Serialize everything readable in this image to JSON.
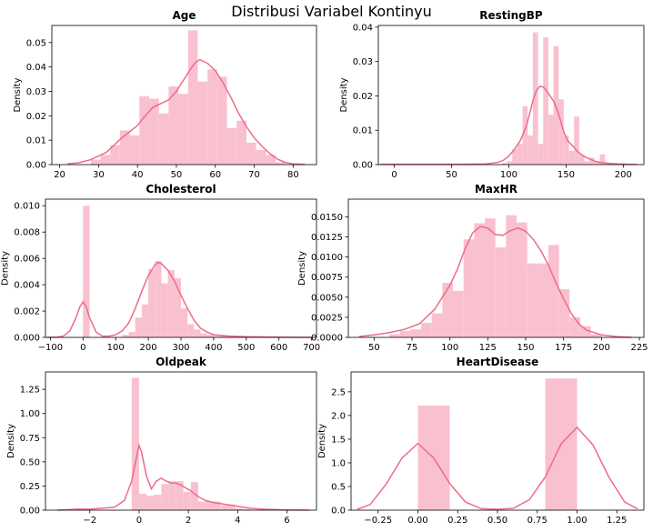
{
  "suptitle": "Distribusi Variabel Kontinyu",
  "colors": {
    "bar": "#f9c1cf",
    "line": "#ee6b8a",
    "axis": "#000000"
  },
  "ylabel": "Density",
  "chart_data": [
    {
      "type": "bar",
      "title": "Age",
      "xlim": [
        18,
        86
      ],
      "ylim": [
        0,
        0.057
      ],
      "xticks": [
        20,
        30,
        40,
        50,
        60,
        70,
        80
      ],
      "xtick_labels": [
        "20",
        "30",
        "40",
        "50",
        "60",
        "70",
        "80"
      ],
      "yticks": [
        0,
        0.01,
        0.02,
        0.03,
        0.04,
        0.05
      ],
      "ytick_labels": [
        "0.00",
        "0.01",
        "0.02",
        "0.03",
        "0.04",
        "0.05"
      ],
      "bin_edges": [
        28,
        30.5,
        33,
        35.5,
        38,
        40.5,
        43,
        45.5,
        48,
        50.5,
        53,
        55.5,
        58,
        60.5,
        63,
        65.5,
        68,
        70.5,
        73,
        75.5,
        78
      ],
      "bars": [
        0.002,
        0.004,
        0.008,
        0.014,
        0.012,
        0.028,
        0.027,
        0.021,
        0.032,
        0.029,
        0.055,
        0.034,
        0.039,
        0.036,
        0.015,
        0.018,
        0.009,
        0.006,
        0.004,
        0.001
      ],
      "kde_x": [
        22,
        25,
        28,
        30,
        32,
        34,
        36,
        38,
        40,
        42,
        44,
        46,
        48,
        50,
        52,
        54,
        55,
        56,
        58,
        60,
        62,
        64,
        66,
        68,
        70,
        72,
        74,
        76,
        78,
        80,
        83
      ],
      "kde_y": [
        0.0003,
        0.0008,
        0.002,
        0.0035,
        0.005,
        0.008,
        0.011,
        0.0135,
        0.016,
        0.02,
        0.0235,
        0.025,
        0.0265,
        0.03,
        0.035,
        0.04,
        0.042,
        0.043,
        0.0415,
        0.0385,
        0.0335,
        0.0275,
        0.021,
        0.0155,
        0.011,
        0.0075,
        0.0045,
        0.0022,
        0.0009,
        0.0003,
        0.0001
      ]
    },
    {
      "type": "bar",
      "title": "RestingBP",
      "xlim": [
        -14,
        218
      ],
      "ylim": [
        0,
        0.0405
      ],
      "xticks": [
        0,
        50,
        100,
        150,
        200
      ],
      "xtick_labels": [
        "0",
        "50",
        "100",
        "150",
        "200"
      ],
      "yticks": [
        0,
        0.01,
        0.02,
        0.03,
        0.04
      ],
      "ytick_labels": [
        "0.00",
        "0.01",
        "0.02",
        "0.03",
        "0.04"
      ],
      "bin_edges": [
        0,
        4.5,
        94,
        98.5,
        103,
        107.5,
        112,
        116.5,
        121,
        125.5,
        130,
        134.5,
        139,
        143.5,
        148,
        152.5,
        157,
        161.5,
        166,
        170.5,
        175,
        179.5,
        184,
        188.5,
        193,
        197.5,
        202
      ],
      "bars": [
        0.0002,
        0,
        0.0005,
        0.001,
        0.0045,
        0.006,
        0.017,
        0.0085,
        0.0385,
        0.006,
        0.037,
        0.0145,
        0.0345,
        0.019,
        0.0085,
        0.004,
        0.014,
        0.003,
        0.001,
        0.002,
        0.001,
        0.003,
        0.0005,
        0.0005,
        0,
        0.0005
      ],
      "kde_x": [
        -12,
        20,
        60,
        80,
        90,
        95,
        100,
        105,
        110,
        115,
        118,
        121,
        124,
        127,
        130,
        133,
        136,
        139,
        142,
        145,
        148,
        151,
        154,
        157,
        160,
        165,
        170,
        175,
        180,
        190,
        200,
        212
      ],
      "kde_y": [
        0.0001,
        0.0001,
        0.0001,
        0.0002,
        0.0006,
        0.0012,
        0.0025,
        0.0045,
        0.007,
        0.011,
        0.0145,
        0.0185,
        0.0215,
        0.0228,
        0.0226,
        0.0215,
        0.02,
        0.0185,
        0.0162,
        0.013,
        0.0095,
        0.0072,
        0.006,
        0.005,
        0.0038,
        0.0025,
        0.0017,
        0.001,
        0.0006,
        0.0003,
        0.0001,
        0.0001
      ]
    },
    {
      "type": "bar",
      "title": "Cholesterol",
      "xlim": [
        -115,
        715
      ],
      "ylim": [
        0,
        0.0105
      ],
      "xticks": [
        -100,
        0,
        100,
        200,
        300,
        400,
        500,
        600,
        700
      ],
      "xtick_labels": [
        "−100",
        "0",
        "100",
        "200",
        "300",
        "400",
        "500",
        "600",
        "700"
      ],
      "yticks": [
        0,
        0.002,
        0.004,
        0.006,
        0.008,
        0.01
      ],
      "ytick_labels": [
        "0.000",
        "0.002",
        "0.004",
        "0.006",
        "0.008",
        "0.010"
      ],
      "bin_edges": [
        0,
        20,
        120,
        140,
        160,
        180,
        200,
        220,
        240,
        260,
        280,
        300,
        320,
        340,
        360,
        380,
        400,
        420,
        440,
        460,
        480,
        500,
        520,
        540,
        560,
        580,
        600
      ],
      "bars": [
        0.01,
        0,
        0.0002,
        0.0004,
        0.0015,
        0.0025,
        0.0052,
        0.0058,
        0.0041,
        0.0051,
        0.0045,
        0.0022,
        0.001,
        0.0006,
        0.0003,
        0.0002,
        0.0001,
        0.0001,
        0.0001,
        5e-05,
        5e-05,
        5e-05,
        5e-05,
        5e-05,
        5e-05,
        5e-05
      ],
      "kde_x": [
        -110,
        -80,
        -60,
        -40,
        -20,
        -10,
        0,
        10,
        20,
        40,
        60,
        80,
        100,
        120,
        140,
        160,
        180,
        200,
        220,
        230,
        240,
        260,
        280,
        300,
        320,
        340,
        360,
        380,
        400,
        450,
        500,
        600,
        700
      ],
      "kde_y": [
        0,
        2e-05,
        0.0001,
        0.0005,
        0.0016,
        0.0023,
        0.0027,
        0.0023,
        0.0015,
        0.0004,
        0.0001,
        0.0001,
        0.0002,
        0.0005,
        0.0011,
        0.0022,
        0.0035,
        0.0047,
        0.0055,
        0.0057,
        0.0056,
        0.0051,
        0.0043,
        0.0032,
        0.0022,
        0.0013,
        0.0007,
        0.0004,
        0.0002,
        0.0001,
        5e-05,
        2e-05,
        0
      ]
    },
    {
      "type": "bar",
      "title": "MaxHR",
      "xlim": [
        33,
        228
      ],
      "ylim": [
        0,
        0.0172
      ],
      "xticks": [
        50,
        75,
        100,
        125,
        150,
        175,
        200,
        225
      ],
      "xtick_labels": [
        "50",
        "75",
        "100",
        "125",
        "150",
        "175",
        "200",
        "225"
      ],
      "yticks": [
        0,
        0.0025,
        0.005,
        0.0075,
        0.01,
        0.0125,
        0.015
      ],
      "ytick_labels": [
        "0.0000",
        "0.0025",
        "0.0050",
        "0.0075",
        "0.0100",
        "0.0125",
        "0.0150"
      ],
      "bin_edges": [
        60,
        67,
        74,
        81,
        88,
        95,
        102,
        109,
        116,
        123,
        130,
        137,
        144,
        151,
        158,
        165,
        172,
        179,
        186,
        193,
        200
      ],
      "bars": [
        0.0004,
        0.0008,
        0.001,
        0.0018,
        0.003,
        0.0068,
        0.0058,
        0.0122,
        0.0142,
        0.0148,
        0.0112,
        0.0152,
        0.0143,
        0.0092,
        0.0092,
        0.0115,
        0.006,
        0.0025,
        0.0014,
        0.0004
      ],
      "kde_x": [
        40,
        50,
        60,
        70,
        80,
        90,
        100,
        105,
        110,
        115,
        120,
        125,
        130,
        135,
        140,
        145,
        150,
        155,
        160,
        165,
        170,
        175,
        180,
        185,
        190,
        200,
        210,
        220
      ],
      "kde_y": [
        0.0001,
        0.0003,
        0.0006,
        0.001,
        0.0017,
        0.0035,
        0.0065,
        0.0085,
        0.011,
        0.013,
        0.0138,
        0.0136,
        0.0128,
        0.0127,
        0.0133,
        0.0136,
        0.0132,
        0.0122,
        0.0108,
        0.009,
        0.0068,
        0.0048,
        0.003,
        0.0017,
        0.0009,
        0.0003,
        0.0001,
        0
      ]
    },
    {
      "type": "bar",
      "title": "Oldpeak",
      "xlim": [
        -3.8,
        7.2
      ],
      "ylim": [
        0,
        1.43
      ],
      "xticks": [
        -2,
        0,
        2,
        4,
        6
      ],
      "xtick_labels": [
        "−2",
        "0",
        "2",
        "4",
        "6"
      ],
      "yticks": [
        0,
        0.25,
        0.5,
        0.75,
        1.0,
        1.25
      ],
      "ytick_labels": [
        "0.00",
        "0.25",
        "0.50",
        "0.75",
        "1.00",
        "1.25"
      ],
      "bin_edges": [
        -2.6,
        -2.3,
        -0.3,
        0,
        0.3,
        0.6,
        0.9,
        1.2,
        1.5,
        1.8,
        2.1,
        2.4,
        2.7,
        3.0,
        3.3,
        3.6,
        3.9,
        4.2,
        4.5
      ],
      "bars": [
        0.01,
        0,
        1.37,
        0.17,
        0.15,
        0.16,
        0.27,
        0.3,
        0.3,
        0.19,
        0.29,
        0.09,
        0.09,
        0.09,
        0.05,
        0.06,
        0.02,
        0.01
      ],
      "kde_x": [
        -3.3,
        -2.5,
        -2,
        -1.5,
        -1,
        -0.6,
        -0.3,
        -0.1,
        0,
        0.1,
        0.3,
        0.5,
        0.7,
        0.9,
        1.1,
        1.3,
        1.5,
        1.7,
        1.9,
        2.1,
        2.4,
        2.7,
        3.0,
        3.5,
        4.0,
        4.5,
        5.0,
        6.0,
        6.9
      ],
      "kde_y": [
        0,
        0.01,
        0.01,
        0.02,
        0.03,
        0.1,
        0.3,
        0.55,
        0.67,
        0.6,
        0.35,
        0.22,
        0.3,
        0.33,
        0.3,
        0.28,
        0.28,
        0.26,
        0.23,
        0.2,
        0.14,
        0.1,
        0.08,
        0.06,
        0.04,
        0.02,
        0.01,
        0.003,
        0
      ]
    },
    {
      "type": "bar",
      "title": "HeartDisease",
      "xlim": [
        -0.42,
        1.42
      ],
      "ylim": [
        0,
        2.92
      ],
      "xticks": [
        -0.25,
        0,
        0.25,
        0.5,
        0.75,
        1.0,
        1.25
      ],
      "xtick_labels": [
        "−0.25",
        "0.00",
        "0.25",
        "0.50",
        "0.75",
        "1.00",
        "1.25"
      ],
      "yticks": [
        0,
        0.5,
        1.0,
        1.5,
        2.0,
        2.5
      ],
      "ytick_labels": [
        "0.0",
        "0.5",
        "1.0",
        "1.5",
        "2.0",
        "2.5"
      ],
      "bin_edges": [
        0,
        0.2,
        0.8,
        1.0
      ],
      "bars": [
        2.21,
        0,
        2.78
      ],
      "kde_x": [
        -0.38,
        -0.3,
        -0.2,
        -0.1,
        0,
        0.1,
        0.2,
        0.3,
        0.4,
        0.5,
        0.6,
        0.7,
        0.8,
        0.9,
        1.0,
        1.1,
        1.2,
        1.3,
        1.38
      ],
      "kde_y": [
        0.02,
        0.12,
        0.55,
        1.1,
        1.41,
        1.1,
        0.56,
        0.17,
        0.03,
        0.02,
        0.04,
        0.22,
        0.7,
        1.4,
        1.75,
        1.38,
        0.7,
        0.17,
        0.03
      ]
    }
  ]
}
